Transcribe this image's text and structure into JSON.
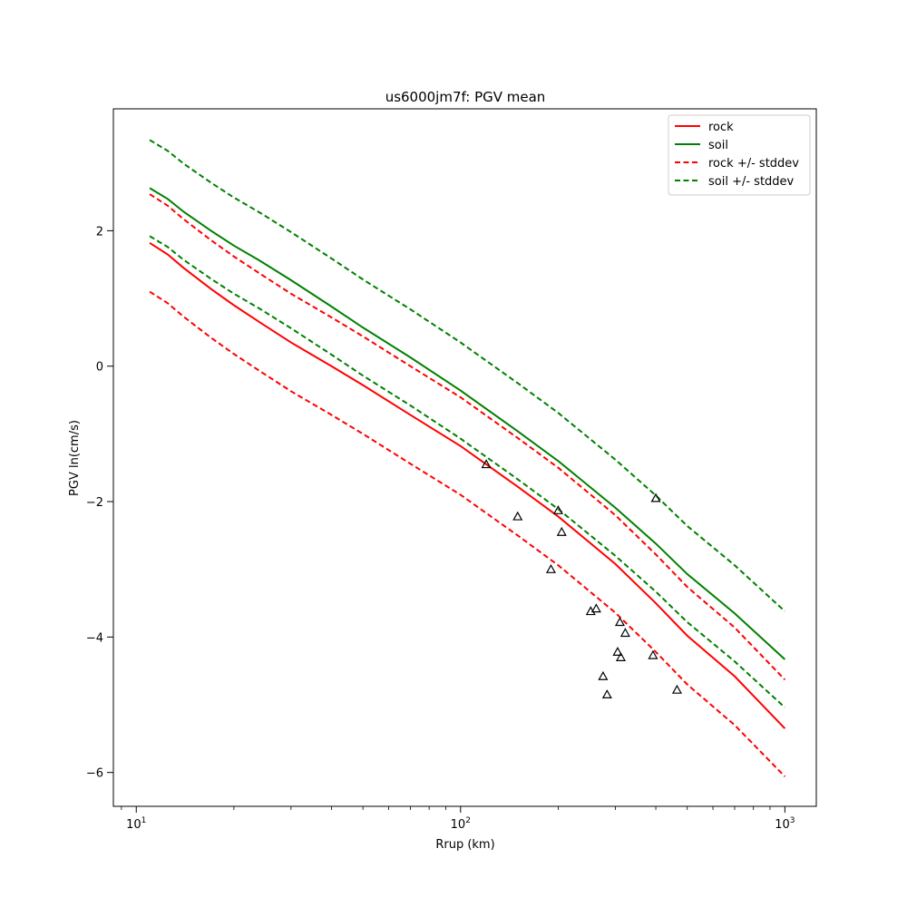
{
  "chart_data": {
    "type": "line",
    "title": "us6000jm7f: PGV mean",
    "xlabel": "Rrup (km)",
    "ylabel": "PGV ln(cm/s)",
    "xscale": "log",
    "xlim": [
      8.5,
      1250
    ],
    "ylim": [
      -6.5,
      3.8
    ],
    "grid": false,
    "legend_position": "top-right",
    "x_ticks": [
      {
        "value": 10,
        "base": "10",
        "exp": "1"
      },
      {
        "value": 100,
        "base": "10",
        "exp": "2"
      },
      {
        "value": 1000,
        "base": "10",
        "exp": "3"
      }
    ],
    "y_ticks": [
      {
        "value": 2,
        "label": "2"
      },
      {
        "value": 0,
        "label": "0"
      },
      {
        "value": -2,
        "label": "−2"
      },
      {
        "value": -4,
        "label": "−4"
      },
      {
        "value": -6,
        "label": "−6"
      }
    ],
    "x": [
      11,
      12.5,
      14,
      17,
      20,
      24,
      30,
      40,
      50,
      70,
      100,
      150,
      200,
      300,
      400,
      500,
      700,
      1000
    ],
    "series": [
      {
        "name": "rock",
        "color": "#ff0000",
        "style": "solid",
        "values": [
          1.82,
          1.65,
          1.45,
          1.14,
          0.9,
          0.65,
          0.35,
          0.0,
          -0.28,
          -0.72,
          -1.18,
          -1.78,
          -2.22,
          -2.92,
          -3.5,
          -3.98,
          -4.58,
          -5.35
        ]
      },
      {
        "name": "soil",
        "color": "#008000",
        "style": "solid",
        "values": [
          2.63,
          2.47,
          2.28,
          2.0,
          1.78,
          1.56,
          1.27,
          0.88,
          0.57,
          0.13,
          -0.36,
          -0.96,
          -1.4,
          -2.09,
          -2.62,
          -3.07,
          -3.65,
          -4.33
        ]
      },
      {
        "name": "rock +/- stddev",
        "color": "#ff0000",
        "style": "dashed",
        "legend": true,
        "values": [
          2.54,
          2.37,
          2.17,
          1.86,
          1.62,
          1.37,
          1.07,
          0.72,
          0.44,
          0.0,
          -0.46,
          -1.06,
          -1.5,
          -2.2,
          -2.78,
          -3.26,
          -3.86,
          -4.63
        ]
      },
      {
        "name": "rock +/- stddev",
        "color": "#ff0000",
        "style": "dashed",
        "legend": false,
        "values": [
          1.1,
          0.93,
          0.73,
          0.42,
          0.18,
          -0.07,
          -0.37,
          -0.72,
          -1.0,
          -1.44,
          -1.9,
          -2.5,
          -2.94,
          -3.64,
          -4.22,
          -4.7,
          -5.3,
          -6.06
        ]
      },
      {
        "name": "soil +/- stddev",
        "color": "#008000",
        "style": "dashed",
        "legend": true,
        "values": [
          3.34,
          3.18,
          2.99,
          2.71,
          2.49,
          2.27,
          1.98,
          1.59,
          1.28,
          0.84,
          0.35,
          -0.25,
          -0.69,
          -1.38,
          -1.91,
          -2.36,
          -2.94,
          -3.62
        ]
      },
      {
        "name": "soil +/- stddev",
        "color": "#008000",
        "style": "dashed",
        "legend": false,
        "values": [
          1.92,
          1.76,
          1.57,
          1.29,
          1.07,
          0.85,
          0.56,
          0.17,
          -0.14,
          -0.58,
          -1.07,
          -1.67,
          -2.11,
          -2.8,
          -3.33,
          -3.78,
          -4.36,
          -5.04
        ]
      }
    ],
    "observations": {
      "marker": "open-triangle",
      "points": [
        {
          "x": 120,
          "y": -1.45
        },
        {
          "x": 150,
          "y": -2.22
        },
        {
          "x": 190,
          "y": -3.0
        },
        {
          "x": 200,
          "y": -2.13
        },
        {
          "x": 205,
          "y": -2.45
        },
        {
          "x": 252,
          "y": -3.62
        },
        {
          "x": 262,
          "y": -3.58
        },
        {
          "x": 275,
          "y": -4.58
        },
        {
          "x": 283,
          "y": -4.85
        },
        {
          "x": 305,
          "y": -4.22
        },
        {
          "x": 310,
          "y": -3.78
        },
        {
          "x": 312,
          "y": -4.3
        },
        {
          "x": 322,
          "y": -3.94
        },
        {
          "x": 392,
          "y": -4.27
        },
        {
          "x": 400,
          "y": -1.95
        },
        {
          "x": 465,
          "y": -4.78
        }
      ]
    },
    "legend": [
      {
        "label": "rock",
        "color": "#ff0000",
        "style": "solid"
      },
      {
        "label": "soil",
        "color": "#008000",
        "style": "solid"
      },
      {
        "label": "rock +/- stddev",
        "color": "#ff0000",
        "style": "dashed"
      },
      {
        "label": "soil +/- stddev",
        "color": "#008000",
        "style": "dashed"
      }
    ]
  }
}
